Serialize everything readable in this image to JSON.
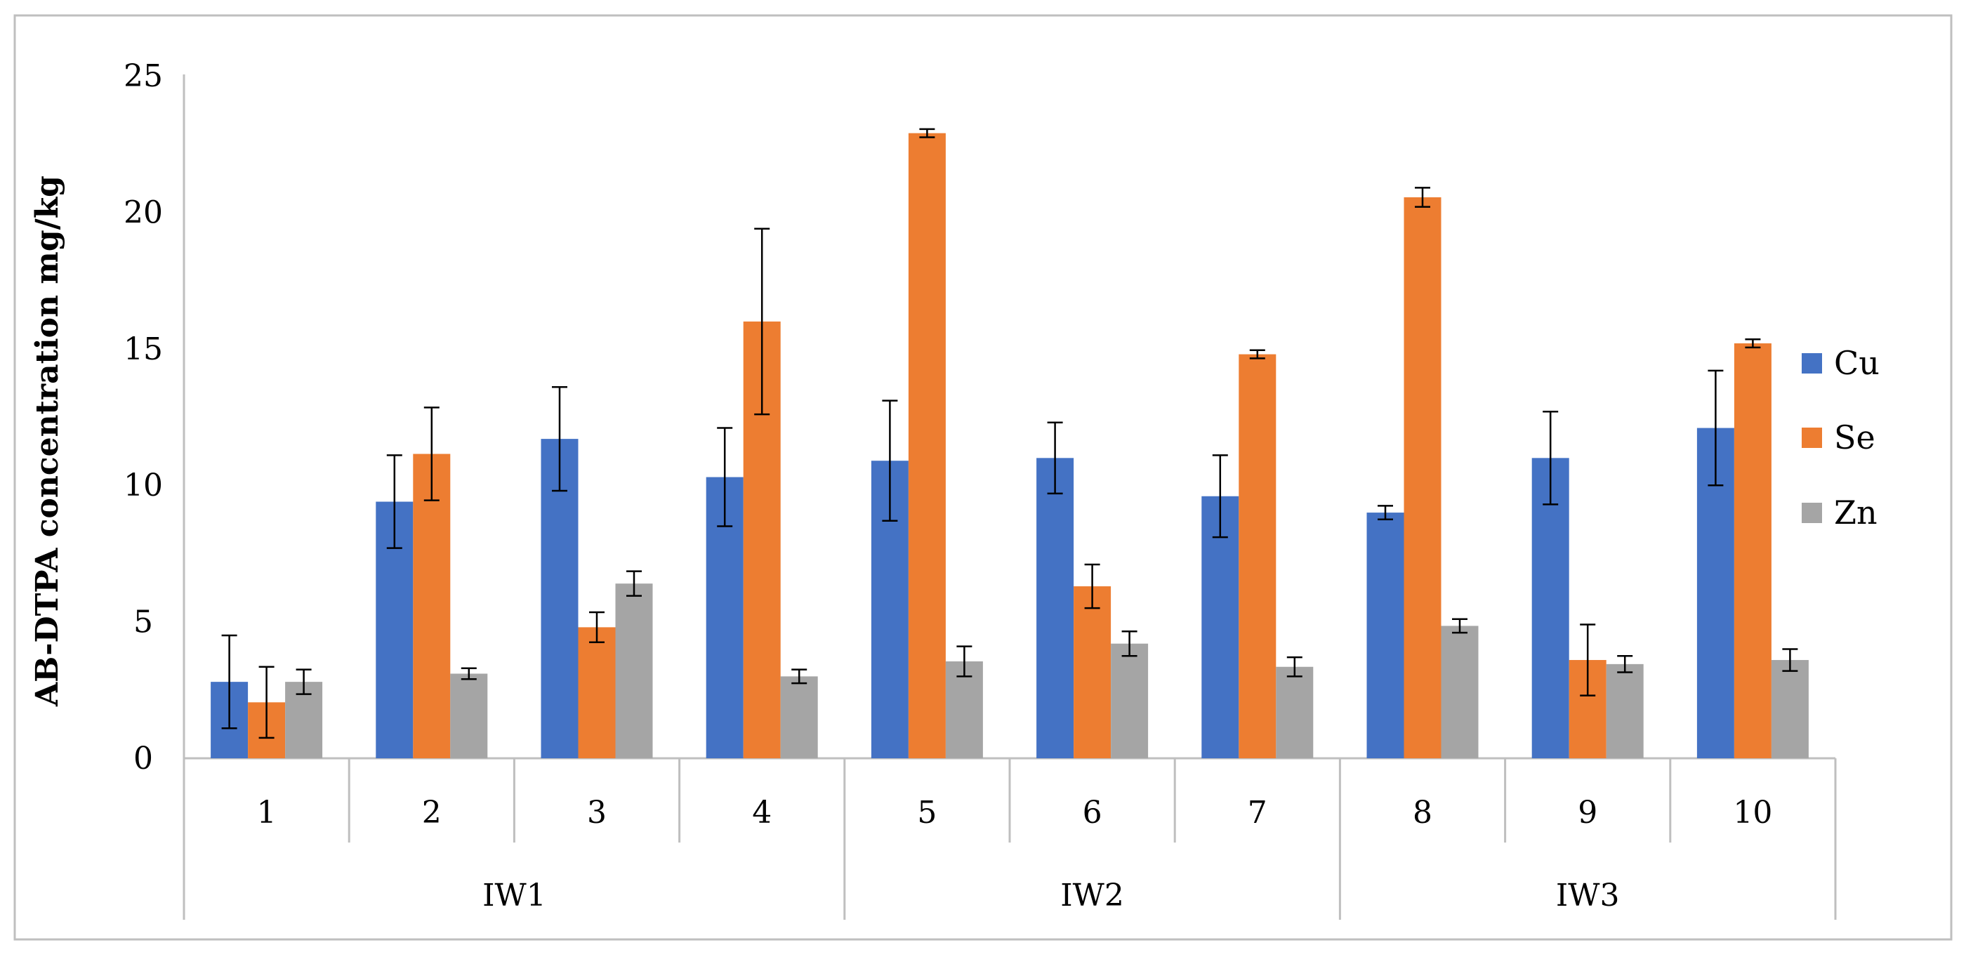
{
  "chart_data": {
    "type": "bar",
    "ylabel": "AB-DTPA concentration mg/kg",
    "xlabel": "",
    "ylim": [
      0,
      25
    ],
    "yticks": [
      0,
      5,
      10,
      15,
      20,
      25
    ],
    "grid": false,
    "legend_position": "right",
    "categories": [
      "1",
      "2",
      "3",
      "4",
      "5",
      "6",
      "7",
      "8",
      "9",
      "10"
    ],
    "groups": [
      {
        "label": "IW1",
        "categories": [
          "1",
          "2",
          "3",
          "4"
        ]
      },
      {
        "label": "IW2",
        "categories": [
          "5",
          "6",
          "7"
        ]
      },
      {
        "label": "IW3",
        "categories": [
          "8",
          "9",
          "10"
        ]
      }
    ],
    "series": [
      {
        "name": "Cu",
        "color": "#4472C4",
        "values": [
          2.8,
          9.4,
          11.7,
          10.3,
          10.9,
          11.0,
          9.6,
          9.0,
          11.0,
          12.1
        ],
        "errors": [
          1.7,
          1.7,
          1.9,
          1.8,
          2.2,
          1.3,
          1.5,
          0.25,
          1.7,
          2.1
        ]
      },
      {
        "name": "Se",
        "color": "#ED7D31",
        "values": [
          2.05,
          11.15,
          4.8,
          16.0,
          22.9,
          6.3,
          14.8,
          20.55,
          3.6,
          15.2
        ],
        "errors": [
          1.3,
          1.7,
          0.55,
          3.4,
          0.15,
          0.8,
          0.15,
          0.35,
          1.3,
          0.15
        ]
      },
      {
        "name": "Zn",
        "color": "#A5A5A5",
        "values": [
          2.8,
          3.1,
          6.4,
          3.0,
          3.55,
          4.2,
          3.35,
          4.85,
          3.45,
          3.6
        ],
        "errors": [
          0.45,
          0.2,
          0.45,
          0.25,
          0.55,
          0.45,
          0.35,
          0.25,
          0.3,
          0.4
        ]
      }
    ]
  }
}
